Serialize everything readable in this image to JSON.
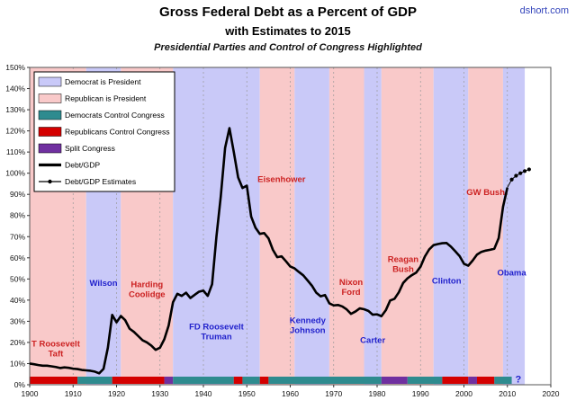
{
  "header": {
    "title": "Gross Federal Debt as a Percent of GDP",
    "subtitle": "with Estimates to 2015",
    "caption": "Presidential Parties and Control of Congress Highlighted",
    "brand": "dshort.com"
  },
  "colors": {
    "dem_president": "#c9c9f8",
    "rep_president": "#f9c9c9",
    "dem_congress": "#2e8b8f",
    "rep_congress": "#d40000",
    "split_congress": "#7030a0",
    "line": "#000000",
    "dem_label": "#2222cc",
    "rep_label": "#cc2222",
    "grid": "#999999",
    "axis": "#333333",
    "brand": "#3344bb"
  },
  "legend": {
    "items": [
      {
        "label": "Democrat is President",
        "swatch": "dem_president"
      },
      {
        "label": "Republican is President",
        "swatch": "rep_president"
      },
      {
        "label": "Democrats Control Congress",
        "swatch": "dem_congress"
      },
      {
        "label": "Republicans Control Congress",
        "swatch": "rep_congress"
      },
      {
        "label": "Split Congress",
        "swatch": "split_congress"
      },
      {
        "label": "Debt/GDP",
        "swatch": "line"
      },
      {
        "label": "Debt/GDP Estimates",
        "swatch": "line_marker"
      }
    ]
  },
  "chart_data": {
    "type": "line",
    "title": "Gross Federal Debt as a Percent of GDP",
    "subtitle": "with Estimates to 2015",
    "note": "Presidential Parties and Control of Congress Highlighted",
    "x_range": [
      1900,
      2020
    ],
    "y_range": [
      0,
      150
    ],
    "x_ticks": [
      1900,
      1910,
      1920,
      1930,
      1940,
      1950,
      1960,
      1970,
      1980,
      1990,
      2000,
      2010,
      2020
    ],
    "y_ticks": [
      0,
      10,
      20,
      30,
      40,
      50,
      60,
      70,
      80,
      90,
      100,
      110,
      120,
      130,
      140,
      150
    ],
    "y_suffix": "%",
    "president_bands": [
      [
        1900,
        1913,
        "R"
      ],
      [
        1913,
        1921,
        "D"
      ],
      [
        1921,
        1933,
        "R"
      ],
      [
        1933,
        1953,
        "D"
      ],
      [
        1953,
        1961,
        "R"
      ],
      [
        1961,
        1969,
        "D"
      ],
      [
        1969,
        1977,
        "R"
      ],
      [
        1977,
        1981,
        "D"
      ],
      [
        1981,
        1993,
        "R"
      ],
      [
        1993,
        2001,
        "D"
      ],
      [
        2001,
        2009,
        "R"
      ],
      [
        2009,
        2014,
        "D"
      ]
    ],
    "congress_segments": [
      [
        1900,
        1911,
        "R"
      ],
      [
        1911,
        1919,
        "D"
      ],
      [
        1919,
        1931,
        "R"
      ],
      [
        1931,
        1933,
        "S"
      ],
      [
        1933,
        1947,
        "D"
      ],
      [
        1947,
        1949,
        "R"
      ],
      [
        1949,
        1953,
        "D"
      ],
      [
        1953,
        1955,
        "R"
      ],
      [
        1955,
        1981,
        "D"
      ],
      [
        1981,
        1987,
        "S"
      ],
      [
        1987,
        1995,
        "D"
      ],
      [
        1995,
        2001,
        "R"
      ],
      [
        2001,
        2003,
        "S"
      ],
      [
        2003,
        2007,
        "R"
      ],
      [
        2007,
        2011,
        "D"
      ]
    ],
    "congress_unknown": {
      "year": 2012.5,
      "label": "?"
    },
    "president_labels": [
      {
        "lines": [
          "T Roosevelt",
          "Taft"
        ],
        "party": "rep",
        "year": 1906,
        "pct": 17
      },
      {
        "lines": [
          "Wilson"
        ],
        "party": "dem",
        "year": 1917,
        "pct": 48
      },
      {
        "lines": [
          "Harding",
          "Coolidge"
        ],
        "party": "rep",
        "year": 1927,
        "pct": 45
      },
      {
        "lines": [
          "FD Roosevelt",
          "Truman"
        ],
        "party": "dem",
        "year": 1943,
        "pct": 25
      },
      {
        "lines": [
          "Eisenhower"
        ],
        "party": "rep",
        "year": 1958,
        "pct": 97
      },
      {
        "lines": [
          "Kennedy",
          "Johnson"
        ],
        "party": "dem",
        "year": 1964,
        "pct": 28
      },
      {
        "lines": [
          "Nixon",
          "Ford"
        ],
        "party": "rep",
        "year": 1974,
        "pct": 46
      },
      {
        "lines": [
          "Carter"
        ],
        "party": "dem",
        "year": 1979,
        "pct": 21
      },
      {
        "lines": [
          "Reagan",
          "Bush"
        ],
        "party": "rep",
        "year": 1986,
        "pct": 57
      },
      {
        "lines": [
          "Clinton"
        ],
        "party": "dem",
        "year": 1996,
        "pct": 49
      },
      {
        "lines": [
          "GW Bush"
        ],
        "party": "rep",
        "year": 2005,
        "pct": 91
      },
      {
        "lines": [
          "Obama"
        ],
        "party": "dem",
        "year": 2011,
        "pct": 53
      }
    ],
    "series": [
      {
        "name": "Debt/GDP",
        "style": "solid",
        "points": [
          [
            1900,
            10
          ],
          [
            1901,
            9.7
          ],
          [
            1902,
            9.3
          ],
          [
            1903,
            9
          ],
          [
            1904,
            9
          ],
          [
            1905,
            8.7
          ],
          [
            1906,
            8.4
          ],
          [
            1907,
            7.9
          ],
          [
            1908,
            8.2
          ],
          [
            1909,
            8
          ],
          [
            1910,
            7.6
          ],
          [
            1911,
            7.4
          ],
          [
            1912,
            7
          ],
          [
            1913,
            6.8
          ],
          [
            1914,
            6.6
          ],
          [
            1915,
            6.2
          ],
          [
            1916,
            5.4
          ],
          [
            1917,
            7.5
          ],
          [
            1918,
            17.5
          ],
          [
            1919,
            33
          ],
          [
            1920,
            29.5
          ],
          [
            1921,
            32.5
          ],
          [
            1922,
            30.5
          ],
          [
            1923,
            26.5
          ],
          [
            1924,
            25
          ],
          [
            1925,
            23
          ],
          [
            1926,
            21
          ],
          [
            1927,
            20
          ],
          [
            1928,
            18.5
          ],
          [
            1929,
            16.5
          ],
          [
            1930,
            17.5
          ],
          [
            1931,
            21.5
          ],
          [
            1932,
            28
          ],
          [
            1933,
            39
          ],
          [
            1934,
            43
          ],
          [
            1935,
            42
          ],
          [
            1936,
            43.5
          ],
          [
            1937,
            41
          ],
          [
            1938,
            42.5
          ],
          [
            1939,
            44
          ],
          [
            1940,
            44.5
          ],
          [
            1941,
            42
          ],
          [
            1942,
            47.5
          ],
          [
            1943,
            70
          ],
          [
            1944,
            89
          ],
          [
            1945,
            112
          ],
          [
            1946,
            121.3
          ],
          [
            1947,
            110
          ],
          [
            1948,
            98
          ],
          [
            1949,
            93
          ],
          [
            1950,
            94.1
          ],
          [
            1951,
            79.5
          ],
          [
            1952,
            74.2
          ],
          [
            1953,
            71.3
          ],
          [
            1954,
            71.7
          ],
          [
            1955,
            69.2
          ],
          [
            1956,
            63.8
          ],
          [
            1957,
            60.3
          ],
          [
            1958,
            60.7
          ],
          [
            1959,
            58.4
          ],
          [
            1960,
            55.9
          ],
          [
            1961,
            55
          ],
          [
            1962,
            53.3
          ],
          [
            1963,
            51.7
          ],
          [
            1964,
            49.3
          ],
          [
            1965,
            46.8
          ],
          [
            1966,
            43.5
          ],
          [
            1967,
            41.8
          ],
          [
            1968,
            42.4
          ],
          [
            1969,
            38.5
          ],
          [
            1970,
            37.5
          ],
          [
            1971,
            37.7
          ],
          [
            1972,
            37
          ],
          [
            1973,
            35.6
          ],
          [
            1974,
            33.5
          ],
          [
            1975,
            34.6
          ],
          [
            1976,
            36.1
          ],
          [
            1977,
            35.7
          ],
          [
            1978,
            34.9
          ],
          [
            1979,
            33.1
          ],
          [
            1980,
            33.3
          ],
          [
            1981,
            32.4
          ],
          [
            1982,
            35.2
          ],
          [
            1983,
            39.8
          ],
          [
            1984,
            40.6
          ],
          [
            1985,
            43.7
          ],
          [
            1986,
            48.1
          ],
          [
            1987,
            50.3
          ],
          [
            1988,
            51.8
          ],
          [
            1989,
            53
          ],
          [
            1990,
            55.8
          ],
          [
            1991,
            60.6
          ],
          [
            1992,
            64
          ],
          [
            1993,
            66
          ],
          [
            1994,
            66.5
          ],
          [
            1995,
            66.9
          ],
          [
            1996,
            67
          ],
          [
            1997,
            65.3
          ],
          [
            1998,
            63.1
          ],
          [
            1999,
            60.8
          ],
          [
            2000,
            57.2
          ],
          [
            2001,
            56.3
          ],
          [
            2002,
            58.7
          ],
          [
            2003,
            61.5
          ],
          [
            2004,
            62.8
          ],
          [
            2005,
            63.4
          ],
          [
            2006,
            63.8
          ],
          [
            2007,
            64.3
          ],
          [
            2008,
            69.3
          ],
          [
            2009,
            84.1
          ],
          [
            2010,
            93.2
          ]
        ]
      },
      {
        "name": "Debt/GDP Estimates",
        "style": "marker",
        "points": [
          [
            2010,
            93.2
          ],
          [
            2011,
            97
          ],
          [
            2012,
            98.8
          ],
          [
            2013,
            100
          ],
          [
            2014,
            101
          ],
          [
            2015,
            101.8
          ]
        ]
      }
    ]
  }
}
